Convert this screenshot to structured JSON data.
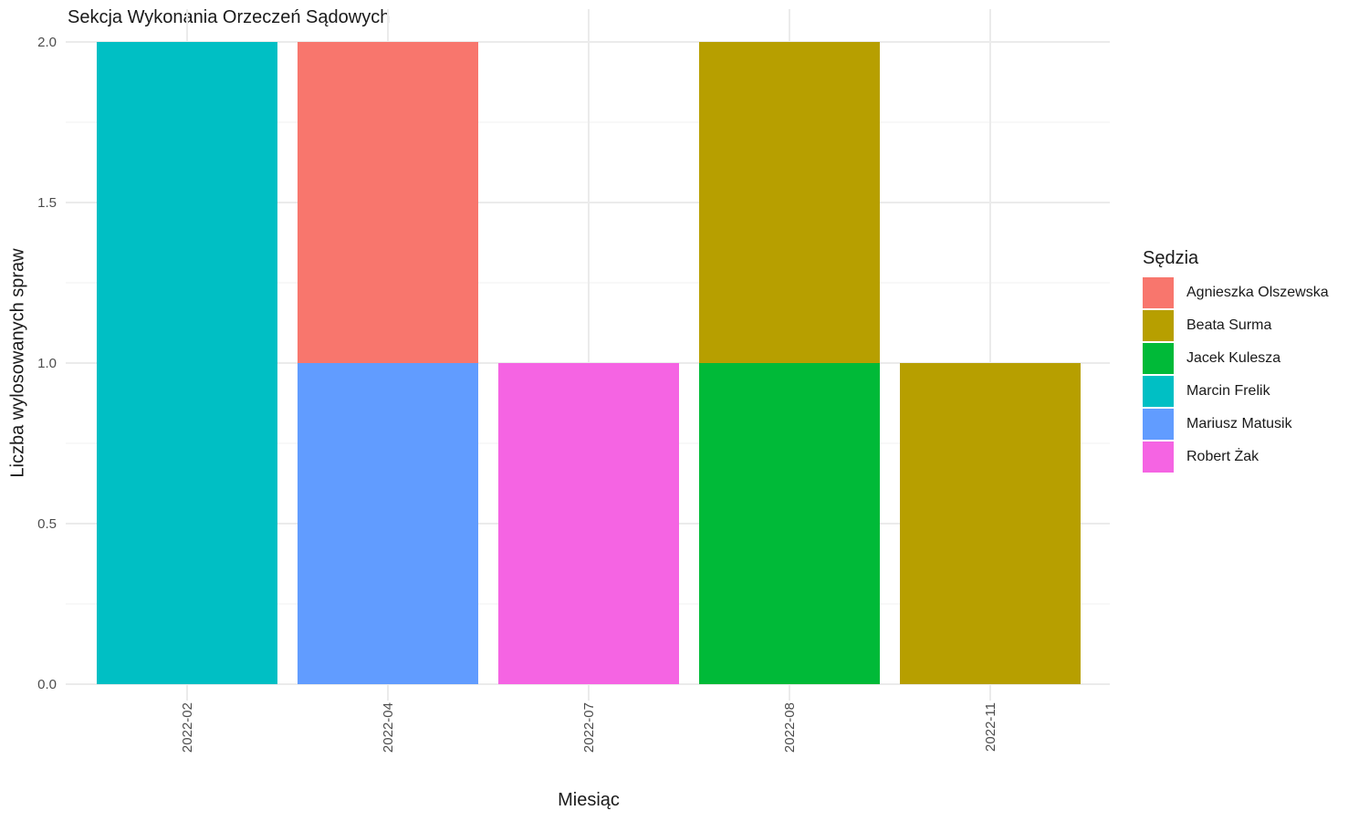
{
  "chart_data": {
    "type": "bar",
    "stacked": true,
    "title": "Sekcja Wykonania Orzeczeń Sądowych",
    "xlabel": "Miesiąc",
    "ylabel": "Liczba wylosowanych spraw",
    "ylim": [
      0,
      2
    ],
    "yticks": [
      "0.0",
      "0.5",
      "1.0",
      "1.5",
      "2.0"
    ],
    "grid": true,
    "categories": [
      "2022-02",
      "2022-04",
      "2022-07",
      "2022-08",
      "2022-11"
    ],
    "legend": {
      "title": "Sędzia",
      "position": "right"
    },
    "series": [
      {
        "name": "Agnieszka Olszewska",
        "color": "#F8766D",
        "values": [
          0,
          1,
          0,
          0,
          0
        ]
      },
      {
        "name": "Beata Surma",
        "color": "#B79F00",
        "values": [
          0,
          0,
          0,
          1,
          1
        ]
      },
      {
        "name": "Jacek Kulesza",
        "color": "#00BA38",
        "values": [
          0,
          0,
          0,
          1,
          0
        ]
      },
      {
        "name": "Marcin Frelik",
        "color": "#00BFC4",
        "values": [
          2,
          0,
          0,
          0,
          0
        ]
      },
      {
        "name": "Mariusz Matusik",
        "color": "#619CFF",
        "values": [
          0,
          1,
          0,
          0,
          0
        ]
      },
      {
        "name": "Robert Żak",
        "color": "#F564E3",
        "values": [
          0,
          0,
          1,
          0,
          0
        ]
      }
    ]
  }
}
